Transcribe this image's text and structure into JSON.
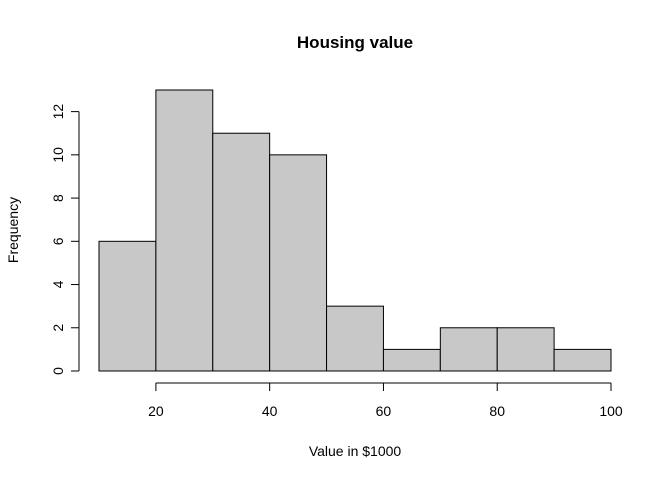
{
  "chart_data": {
    "type": "bar",
    "title": "Housing value",
    "xlabel": "Value  in $1000",
    "ylabel": "Frequency",
    "bin_edges": [
      10,
      20,
      30,
      40,
      50,
      60,
      70,
      80,
      90,
      100
    ],
    "values": [
      6,
      13,
      11,
      10,
      3,
      1,
      2,
      2,
      1
    ],
    "xlim": [
      10,
      100
    ],
    "ylim": [
      0,
      13
    ],
    "x_ticks": [
      20,
      40,
      60,
      80,
      100
    ],
    "y_ticks": [
      0,
      2,
      4,
      6,
      8,
      10,
      12
    ],
    "grid": false,
    "bar_fill": "#c8c8c8",
    "bar_stroke": "#000000"
  }
}
